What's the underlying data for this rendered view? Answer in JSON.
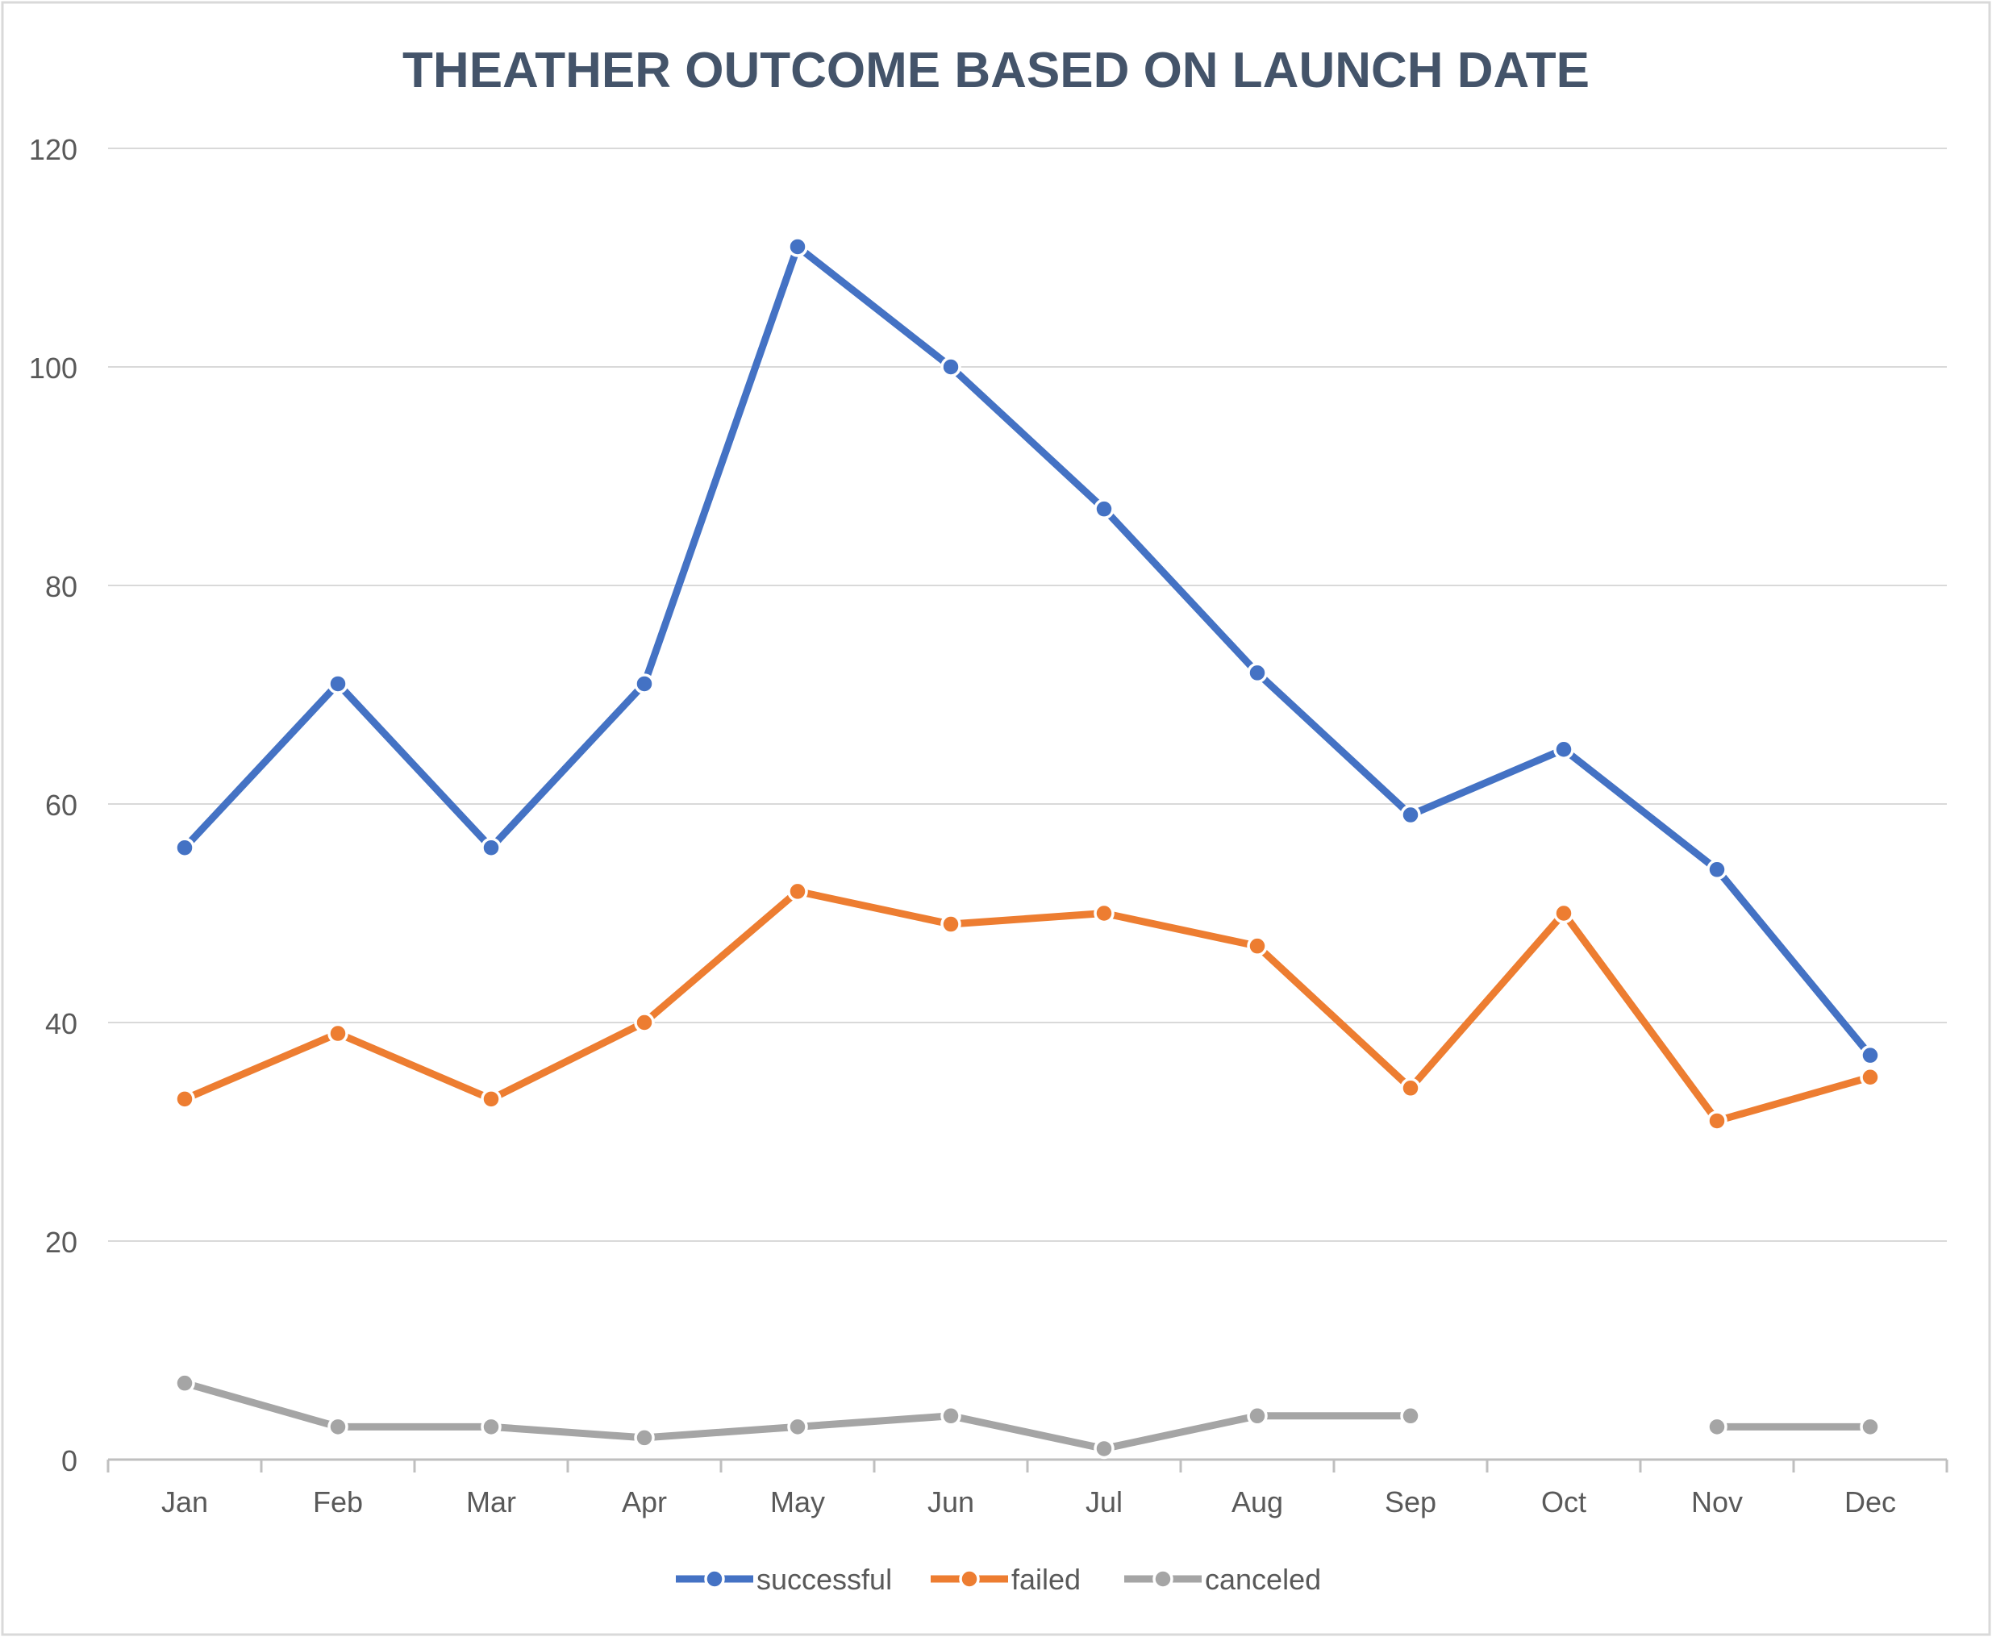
{
  "chart_data": {
    "type": "line",
    "title": "THEATHER OUTCOME BASED ON LAUNCH DATE",
    "xlabel": "",
    "ylabel": "",
    "categories": [
      "Jan",
      "Feb",
      "Mar",
      "Apr",
      "May",
      "Jun",
      "Jul",
      "Aug",
      "Sep",
      "Oct",
      "Nov",
      "Dec"
    ],
    "ylim": [
      0,
      120
    ],
    "yticks": [
      0,
      20,
      40,
      60,
      80,
      100,
      120
    ],
    "grid": true,
    "legend_position": "bottom",
    "series": [
      {
        "name": "successful",
        "color": "#4472c4",
        "values": [
          56,
          71,
          56,
          71,
          111,
          100,
          87,
          72,
          59,
          65,
          54,
          37
        ]
      },
      {
        "name": "failed",
        "color": "#ed7d31",
        "values": [
          33,
          39,
          33,
          40,
          52,
          49,
          50,
          47,
          34,
          50,
          31,
          35
        ]
      },
      {
        "name": "canceled",
        "color": "#a5a5a5",
        "values": [
          7,
          3,
          3,
          2,
          3,
          4,
          1,
          4,
          4,
          null,
          3,
          3
        ]
      }
    ]
  }
}
